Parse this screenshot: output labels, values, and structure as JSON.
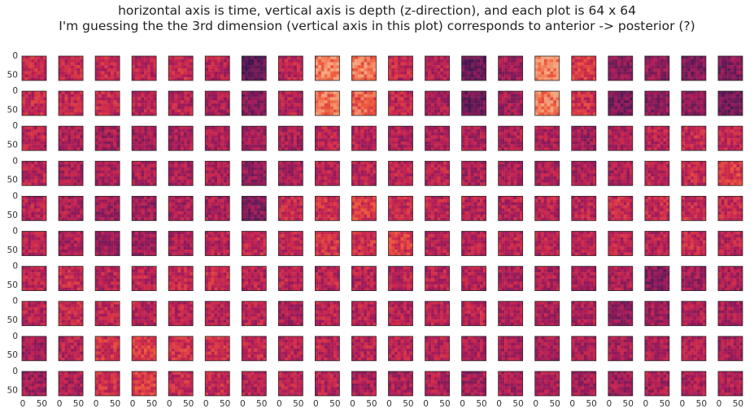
{
  "title_lines": [
    "horizontal axis is time, vertical axis is depth (z-direction), and each plot is 64 x 64",
    "I'm guessing the the 3rd dimension (vertical axis in this plot) corresponds to anterior -> posterior (?)"
  ],
  "chart_data": {
    "type": "heatmap",
    "layout": "small-multiples grid of 64x64 image panels",
    "rows": 10,
    "cols": 20,
    "panel_size": [
      64,
      64
    ],
    "x_ticks": [
      "0",
      "50"
    ],
    "y_ticks": [
      "0",
      "50"
    ],
    "colormap": "rocket",
    "colormap_colors": [
      "#3d1450",
      "#6a1b55",
      "#a11a5b",
      "#cf2a4a",
      "#ee5a3a",
      "#f6a57e"
    ],
    "mean_level": [
      [
        0.55,
        0.55,
        0.55,
        0.5,
        0.55,
        0.5,
        0.15,
        0.52,
        0.9,
        0.85,
        0.55,
        0.5,
        0.2,
        0.4,
        0.92,
        0.65,
        0.32,
        0.35,
        0.28,
        0.3
      ],
      [
        0.55,
        0.55,
        0.55,
        0.5,
        0.5,
        0.45,
        0.3,
        0.5,
        0.85,
        0.8,
        0.55,
        0.45,
        0.2,
        0.4,
        0.88,
        0.6,
        0.25,
        0.3,
        0.32,
        0.22
      ],
      [
        0.5,
        0.45,
        0.4,
        0.4,
        0.45,
        0.45,
        0.4,
        0.45,
        0.5,
        0.5,
        0.45,
        0.45,
        0.45,
        0.45,
        0.45,
        0.4,
        0.45,
        0.5,
        0.55,
        0.55
      ],
      [
        0.5,
        0.45,
        0.45,
        0.45,
        0.45,
        0.45,
        0.35,
        0.45,
        0.5,
        0.5,
        0.5,
        0.5,
        0.45,
        0.45,
        0.45,
        0.45,
        0.45,
        0.5,
        0.55,
        0.65
      ],
      [
        0.5,
        0.45,
        0.4,
        0.4,
        0.45,
        0.45,
        0.3,
        0.55,
        0.6,
        0.65,
        0.55,
        0.5,
        0.5,
        0.5,
        0.5,
        0.5,
        0.55,
        0.55,
        0.55,
        0.55
      ],
      [
        0.5,
        0.45,
        0.4,
        0.4,
        0.45,
        0.5,
        0.55,
        0.55,
        0.6,
        0.6,
        0.65,
        0.5,
        0.5,
        0.5,
        0.5,
        0.5,
        0.5,
        0.5,
        0.55,
        0.5
      ],
      [
        0.5,
        0.55,
        0.5,
        0.5,
        0.55,
        0.55,
        0.5,
        0.5,
        0.5,
        0.5,
        0.5,
        0.5,
        0.5,
        0.45,
        0.45,
        0.45,
        0.45,
        0.3,
        0.4,
        0.45
      ],
      [
        0.5,
        0.55,
        0.55,
        0.5,
        0.5,
        0.5,
        0.5,
        0.45,
        0.5,
        0.5,
        0.5,
        0.5,
        0.5,
        0.45,
        0.45,
        0.45,
        0.35,
        0.4,
        0.45,
        0.45
      ],
      [
        0.4,
        0.5,
        0.6,
        0.65,
        0.6,
        0.6,
        0.55,
        0.5,
        0.5,
        0.5,
        0.5,
        0.5,
        0.45,
        0.45,
        0.45,
        0.45,
        0.45,
        0.45,
        0.5,
        0.45
      ],
      [
        0.4,
        0.45,
        0.6,
        0.65,
        0.55,
        0.55,
        0.5,
        0.5,
        0.5,
        0.45,
        0.45,
        0.45,
        0.4,
        0.45,
        0.45,
        0.4,
        0.4,
        0.45,
        0.45,
        0.45
      ]
    ]
  }
}
